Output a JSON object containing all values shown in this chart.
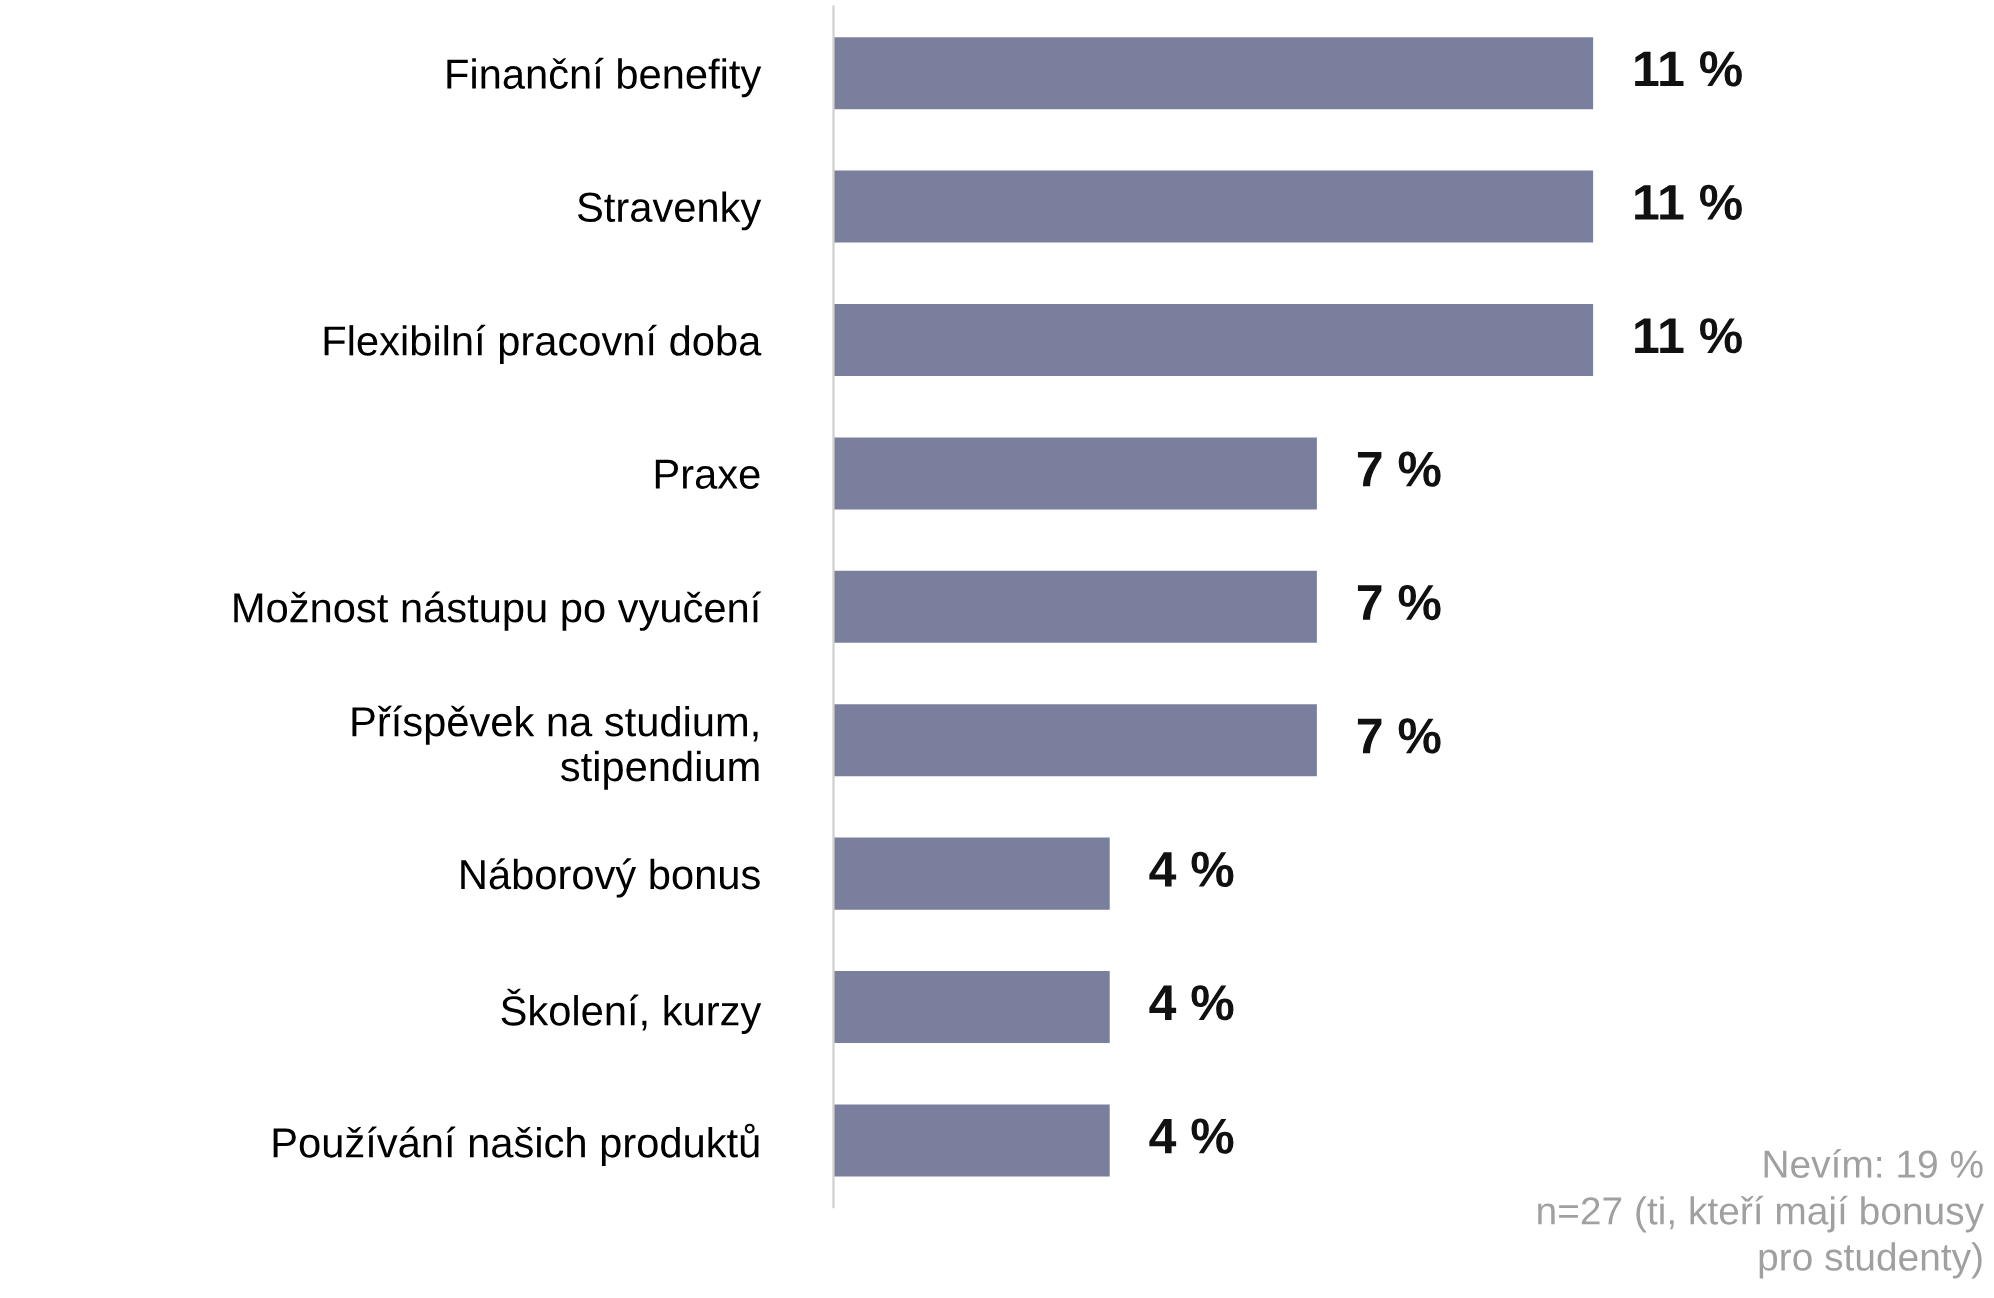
{
  "chart_data": {
    "type": "bar",
    "orientation": "horizontal",
    "categories": [
      "Finanční benefity",
      "Stravenky",
      "Flexibilní pracovní doba",
      "Praxe",
      "Možnost nástupu po vyučení",
      "Příspěvek na studium,\nstipendium",
      "Náborový bonus",
      "Školení, kurzy",
      "Používání našich produktů"
    ],
    "values": [
      11,
      11,
      11,
      7,
      7,
      7,
      4,
      4,
      4
    ],
    "value_labels": [
      "11 %",
      "11 %",
      "11 %",
      "7 %",
      "7 %",
      "7 %",
      "4 %",
      "4 %",
      "4 %"
    ],
    "color": "#7b7f9e",
    "grid": false,
    "legend": false,
    "annotations": [
      "Nevím: 19 %",
      "n=27 (ti, kteří mají bonusy\npro studenty)"
    ]
  }
}
